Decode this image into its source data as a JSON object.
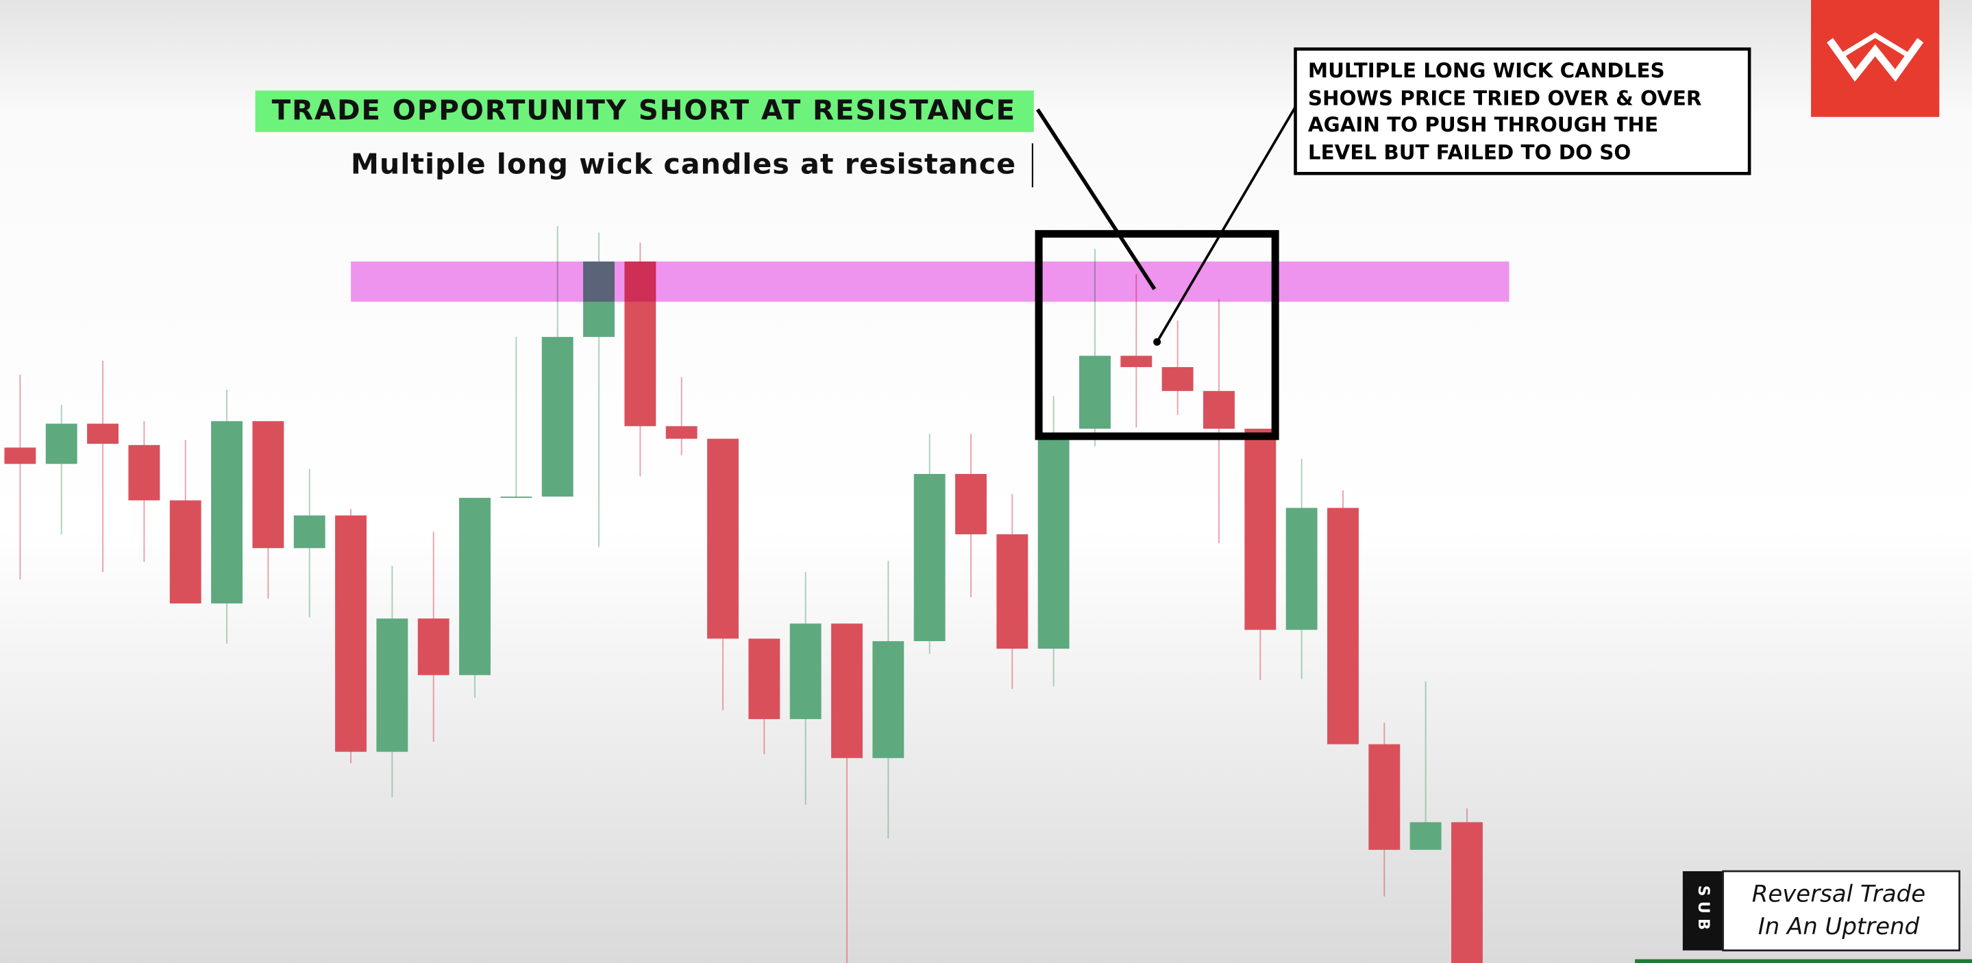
{
  "chart_data": {
    "type": "candlestick",
    "headline": "TRADE OPPORTUNITY SHORT AT RESISTANCE",
    "subtitle": "Multiple long wick candles at resistance",
    "callout": [
      "MULTIPLE LONG WICK CANDLES",
      "SHOWS PRICE TRIED OVER & OVER",
      "AGAIN TO PUSH THROUGH THE",
      "LEVEL BUT FAILED TO DO SO"
    ],
    "badge": "SUB",
    "badge_text": [
      "Reversal Trade",
      "In An Uptrend"
    ],
    "ylim": [
      0,
      766
    ],
    "up_color": "#5fa97f",
    "down_color": "#d9505b",
    "zone_color": "#ee82ee",
    "resistance_zone": [
      526,
      558
    ],
    "open": [
      410,
      397,
      429,
      412,
      368,
      286,
      431,
      330,
      356,
      168,
      274,
      229,
      370,
      371,
      498,
      558,
      427,
      417,
      258,
      194,
      270,
      163,
      256,
      389,
      341,
      250,
      425,
      483,
      474,
      455,
      425,
      265,
      362,
      174,
      90,
      112
    ],
    "high": [
      468,
      444,
      479,
      431,
      416,
      456,
      431,
      393,
      361,
      316,
      343,
      370,
      498,
      586,
      581,
      573,
      466,
      417,
      258,
      311,
      270,
      320,
      421,
      421,
      373,
      451,
      568,
      548,
      511,
      528,
      425,
      401,
      376,
      191,
      224,
      123
    ],
    "low": [
      305,
      341,
      311,
      319,
      286,
      254,
      290,
      275,
      159,
      132,
      176,
      211,
      370,
      371,
      331,
      387,
      404,
      201,
      166,
      126,
      0,
      99,
      246,
      291,
      218,
      220,
      411,
      426,
      436,
      334,
      225,
      226,
      174,
      53,
      90,
      0
    ],
    "close": [
      397,
      429,
      413,
      368,
      286,
      431,
      330,
      356,
      168,
      274,
      229,
      370,
      371,
      498,
      558,
      427,
      417,
      258,
      194,
      270,
      163,
      256,
      389,
      341,
      250,
      416,
      483,
      474,
      455,
      425,
      265,
      362,
      174,
      90,
      112,
      0
    ]
  }
}
